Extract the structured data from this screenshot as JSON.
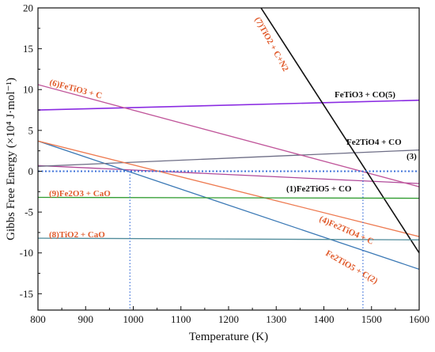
{
  "chart_data": {
    "type": "line",
    "xlabel": "Temperature (K)",
    "ylabel": "Gibbs Free Energy (×10⁴ J·mol⁻¹)",
    "xlim": [
      800,
      1600
    ],
    "ylim": [
      -17,
      20
    ],
    "xticks": [
      800,
      900,
      1000,
      1100,
      1200,
      1300,
      1400,
      1500,
      1600
    ],
    "yticks": [
      -15,
      -10,
      -5,
      0,
      5,
      10,
      15,
      20
    ],
    "grid": false,
    "legend": "none",
    "series": [
      {
        "name": "(1)Fe2TiO5 + CO",
        "color": "#b04a9a",
        "x": [
          800,
          1600
        ],
        "y": [
          0.7,
          -1.5
        ]
      },
      {
        "name": "Fe2TiO5 + C(2)",
        "color": "#3a78b5",
        "x": [
          800,
          1600
        ],
        "y": [
          3.7,
          -12.0
        ]
      },
      {
        "name": "Fe2TiO4 + CO (3)",
        "color": "#6e6e86",
        "x": [
          800,
          1600
        ],
        "y": [
          0.6,
          2.6
        ]
      },
      {
        "name": "(4)Fe2TiO4 + C",
        "color": "#ee7a50",
        "x": [
          800,
          1600
        ],
        "y": [
          3.7,
          -8.0
        ]
      },
      {
        "name": "FeTiO3 + CO(5)",
        "color": "#8a2be2",
        "x": [
          800,
          1600
        ],
        "y": [
          7.5,
          8.7
        ]
      },
      {
        "name": "(6)FeTiO3 + C",
        "color": "#c0559a",
        "x": [
          800,
          1600
        ],
        "y": [
          10.6,
          -1.9
        ]
      },
      {
        "name": "(7)TiO2 + C+N2",
        "color": "#111111",
        "x": [
          1268,
          1600
        ],
        "y": [
          20.0,
          -10.0
        ]
      },
      {
        "name": "(8)TiO2 + CaO",
        "color": "#4f8b9a",
        "x": [
          800,
          1600
        ],
        "y": [
          -8.2,
          -8.4
        ]
      },
      {
        "name": "(9)Fe2O3 + CaO",
        "color": "#2e9b2e",
        "x": [
          800,
          1600
        ],
        "y": [
          -3.2,
          -3.3
        ]
      }
    ],
    "reference_lines": {
      "y_zero": 0,
      "x_markers": [
        993,
        1482
      ],
      "color": "#3a6fd8"
    },
    "annotations": [
      {
        "text": "(7)TiO2 + C+N2",
        "color": "#e05a2b"
      },
      {
        "text": "(6)FeTiO3 + C",
        "color": "#e05a2b"
      },
      {
        "text": "FeTiO3 + CO(5)",
        "color": "#111111"
      },
      {
        "text": "Fe2TiO4 + CO",
        "color": "#111111"
      },
      {
        "text": "(3)",
        "color": "#111111"
      },
      {
        "text": "(1)Fe2TiO5 + CO",
        "color": "#111111"
      },
      {
        "text": "(9)Fe2O3 + CaO",
        "color": "#e05a2b"
      },
      {
        "text": "(4)Fe2TiO4 + C",
        "color": "#e05a2b"
      },
      {
        "text": "(8)TiO2 + CaO",
        "color": "#e05a2b"
      },
      {
        "text": "Fe2TiO5 + C(2)",
        "color": "#e05a2b"
      }
    ]
  }
}
